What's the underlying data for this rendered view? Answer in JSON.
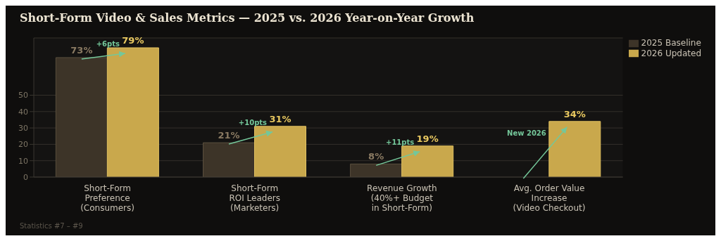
{
  "chart_data": {
    "type": "bar",
    "title": "Short-Form Video & Sales Metrics — 2025 vs. 2026 Year-on-Year Growth",
    "categories": [
      "Short-Form\nPreference\n(Consumers)",
      "Short-Form\nROI Leaders\n(Marketers)",
      "Revenue Growth\n(40%+ Budget\nin Short-Form)",
      "Avg. Order Value\nIncrease\n(Video Checkout)"
    ],
    "series": [
      {
        "name": "2025 Baseline",
        "color": "#3d3428",
        "values": [
          73,
          21,
          8,
          null
        ],
        "value_labels": [
          "73%",
          "21%",
          "8%",
          null
        ]
      },
      {
        "name": "2026 Updated",
        "color": "#c9a84c",
        "values": [
          79,
          31,
          19,
          34
        ],
        "value_labels": [
          "79%",
          "31%",
          "19%",
          "34%"
        ]
      }
    ],
    "ylim": [
      0,
      85
    ],
    "yticks": [
      0,
      10,
      20,
      30,
      40,
      50
    ],
    "grid": "y",
    "legend": "top right",
    "annotations": [
      {
        "text": "+6pts",
        "x": "Short-Form\nPreference\n(Consumers)",
        "y": 79
      },
      {
        "text": "+10pts",
        "x": "Short-Form\nROI Leaders\n(Marketers)",
        "y": 31
      },
      {
        "text": "+11pts",
        "x": "Revenue Growth\n(40%+ Budget\nin Short-Form)",
        "y": 19
      },
      {
        "text": "New 2026",
        "x": "Avg. Order Value\nIncrease\n(Video Checkout)",
        "y": 34
      },
      "Statistics #7 – #9"
    ]
  }
}
